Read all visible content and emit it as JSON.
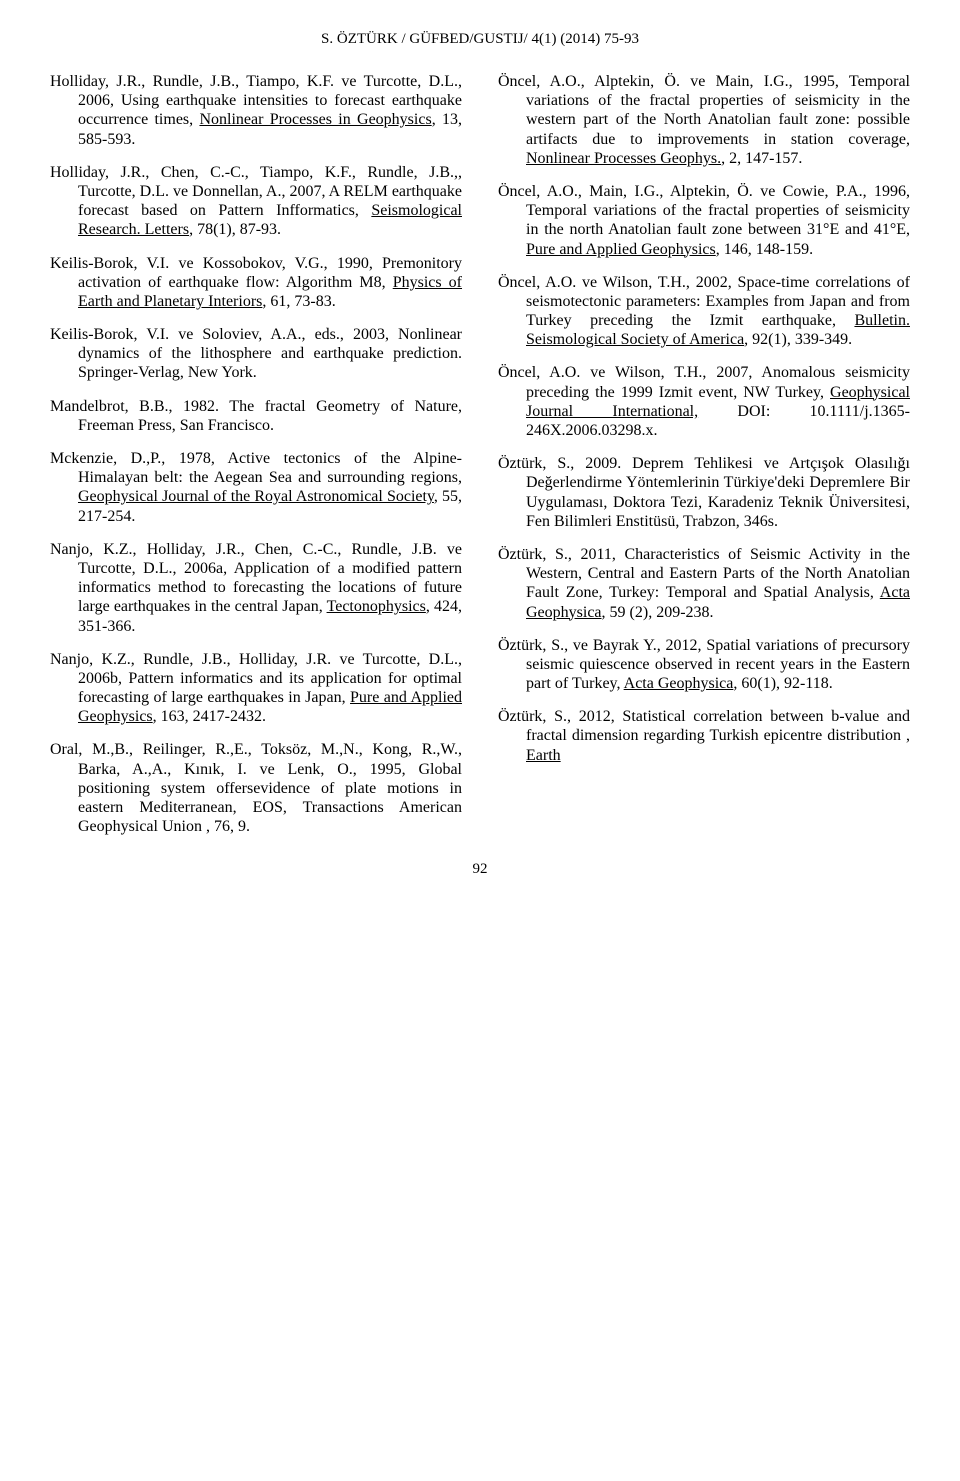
{
  "header": "S. ÖZTÜRK / GÜFBED/GUSTIJ/ 4(1) (2014) 75-93",
  "page_number": "92",
  "left": [
    {
      "pre": "Holliday, J.R., Rundle, J.B., Tiampo, K.F. ve Turcotte, D.L., 2006, Using earthquake intensities to forecast earthquake occurrence times, ",
      "u": "Nonlinear Processes in Geophysics",
      "post": ", 13, 585-593."
    },
    {
      "pre": "Holliday, J.R., Chen, C.-C., Tiampo, K.F., Rundle, J.B.,, Turcotte, D.L. ve Donnellan, A., 2007, A RELM earthquake forecast based on Pattern Infformatics, ",
      "u": "Seismological Research. Letters",
      "post": ", 78(1), 87-93."
    },
    {
      "pre": "Keilis-Borok, V.I. ve Kossobokov, V.G., 1990, Premonitory activation of earthquake flow: Algorithm M8, ",
      "u": "Physics of Earth and Planetary Interiors",
      "post": ", 61, 73-83."
    },
    {
      "pre": "Keilis-Borok, V.I. ve Soloviev, A.A., eds., 2003, Nonlinear dynamics of the lithosphere and earthquake prediction. Springer-Verlag, New York.",
      "u": "",
      "post": ""
    },
    {
      "pre": "Mandelbrot, B.B., 1982. The fractal Geometry of Nature, Freeman Press, San Francisco.",
      "u": "",
      "post": ""
    },
    {
      "pre": "Mckenzie, D.,P., 1978, Active tectonics of the Alpine-Himalayan belt: the Aegean Sea and surrounding regions, ",
      "u": "Geophysical Journal of the Royal Astronomical Society",
      "post": ", 55, 217-254."
    },
    {
      "pre": "Nanjo, K.Z., Holliday, J.R., Chen, C.-C., Rundle, J.B. ve Turcotte, D.L., 2006a, Application of a modified pattern informatics method to forecasting the locations of future large earthquakes in the central Japan, ",
      "u": "Tectonophysics",
      "post": ", 424, 351-366."
    },
    {
      "pre": "Nanjo, K.Z., Rundle, J.B., Holliday, J.R. ve Turcotte, D.L., 2006b, Pattern informatics and its application for optimal forecasting of large earthquakes in Japan, ",
      "u": "Pure and Applied Geophysics",
      "post": ", 163, 2417-2432."
    },
    {
      "pre": "Oral, M.,B., Reilinger, R.,E., Toksöz, M.,N., Kong, R.,W., Barka, A.,A., Kınık, I. ve Lenk, O., 1995, Global positioning system offersevidence of plate motions in eastern Mediterranean, EOS, Transactions American Geophysical Union , 76, 9.",
      "u": "",
      "post": ""
    }
  ],
  "right": [
    {
      "pre": "Öncel, A.O., Alptekin, Ö. ve Main, I.G., 1995, Temporal variations of the fractal properties of seismicity in the western part of the North Anatolian fault zone: possible artifacts due to improvements in station coverage, ",
      "u": "Nonlinear Processes Geophys.",
      "post": ", 2, 147-157."
    },
    {
      "pre": "Öncel, A.O., Main, I.G., Alptekin, Ö. ve Cowie, P.A., 1996, Temporal variations of the fractal properties of seismicity in the north Anatolian fault zone between 31°E and 41°E, ",
      "u": "Pure and Applied Geophysics",
      "post": ", 146, 148-159."
    },
    {
      "pre": "Öncel, A.O. ve Wilson, T.H., 2002, Space-time correlations of seismotectonic parameters: Examples from Japan and from Turkey preceding the Izmit earthquake, ",
      "u": "Bulletin. Seismological Society of America",
      "post": ", 92(1), 339-349."
    },
    {
      "pre": "Öncel, A.O. ve Wilson, T.H., 2007, Anomalous seismicity preceding the 1999 Izmit event, NW Turkey, ",
      "u": "Geophysical Journal International,",
      "post": " DOI: 10.1111/j.1365-246X.2006.03298.x."
    },
    {
      "pre": "Öztürk, S., 2009. Deprem Tehlikesi ve Artçışok Olasılığı Değerlendirme Yöntemlerinin Türkiye'deki Depremlere Bir Uygulaması, Doktora Tezi, Karadeniz Teknik Üniversitesi, Fen Bilimleri Enstitüsü, Trabzon, 346s.",
      "u": "",
      "post": ""
    },
    {
      "pre": "Öztürk, S., 2011, Characteristics of Seismic Activity in the Western, Central and Eastern Parts of the North Anatolian Fault Zone, Turkey: Temporal and Spatial Analysis, ",
      "u": "Acta Geophysica",
      "post": ", 59 (2), 209-238."
    },
    {
      "pre": "Öztürk, S., ve Bayrak Y., 2012, Spatial variations of precursory seismic quiescence observed in recent years in the Eastern part of Turkey, ",
      "u": "Acta Geophysica",
      "post": ", 60(1), 92-118."
    },
    {
      "pre": "Öztürk, S., 2012, Statistical correlation between b-value and fractal dimension regarding Turkish epicentre distribution , ",
      "u": "Earth",
      "post": ""
    }
  ]
}
